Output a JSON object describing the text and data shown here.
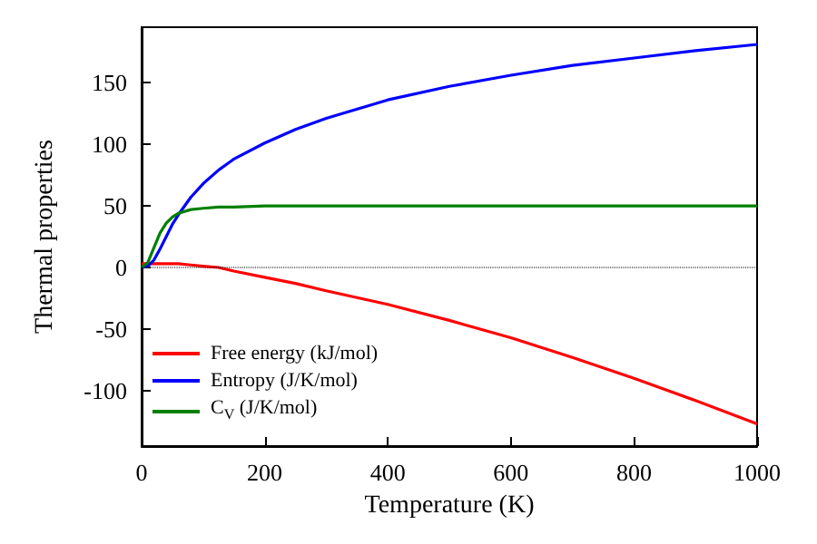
{
  "chart_data": {
    "type": "line",
    "xlabel": "Temperature (K)",
    "ylabel": "Thermal properties",
    "x": [
      0,
      10,
      20,
      30,
      40,
      50,
      60,
      80,
      100,
      125,
      150,
      200,
      250,
      300,
      400,
      500,
      600,
      700,
      800,
      900,
      1000
    ],
    "series": [
      {
        "name": "Free energy (kJ/mol)",
        "color": "#ff0000",
        "values": [
          3,
          3,
          3,
          3,
          3,
          3,
          3,
          2,
          1,
          0,
          -3,
          -8,
          -13,
          -19,
          -30,
          -43,
          -57,
          -73,
          -90,
          -108,
          -127
        ]
      },
      {
        "name": "Entropy (J/K/mol)",
        "color": "#0000ff",
        "values": [
          0,
          1,
          6,
          15,
          25,
          35,
          43,
          57,
          68,
          79,
          88,
          101,
          112,
          121,
          136,
          147,
          156,
          164,
          170,
          176,
          181
        ]
      },
      {
        "name": "C$_{V}$ (J/K/mol)",
        "color": "#008000",
        "values": [
          0,
          4,
          16,
          28,
          36,
          41,
          44,
          47,
          48,
          49,
          49,
          50,
          50,
          50,
          50,
          50,
          50,
          50,
          50,
          50,
          50
        ]
      }
    ],
    "xlim": [
      0,
      1000
    ],
    "xticks": [
      0,
      200,
      400,
      600,
      800,
      1000
    ],
    "ylim": [
      -145,
      195
    ],
    "yticks": [
      -100,
      -50,
      0,
      50,
      100,
      150
    ],
    "ref_lines": [
      {
        "axis": "y",
        "value": 0,
        "color": "#000000",
        "line_style": "dotted"
      }
    ],
    "grid": false,
    "legend": "bottom left",
    "marker": "none",
    "line_style": "solid"
  }
}
